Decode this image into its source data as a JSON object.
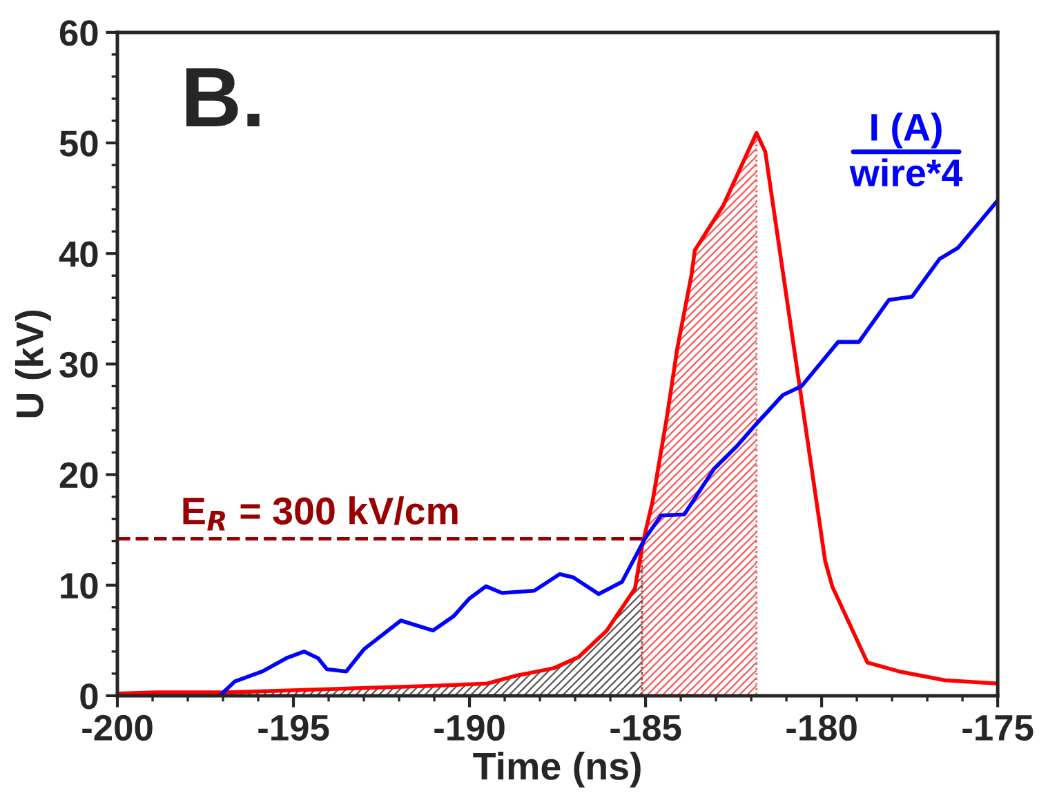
{
  "chart_data": {
    "type": "line",
    "xlabel": "Time (ns)",
    "ylabel": "U (kV)",
    "xlim": [
      -200,
      -175
    ],
    "xticks": [
      -200,
      -195,
      -190,
      -185,
      -180,
      -175
    ],
    "ylim": [
      0,
      60
    ],
    "yticks": [
      0,
      10,
      20,
      30,
      40,
      50,
      60
    ],
    "grid": false,
    "legend": false,
    "line_style": "solid",
    "marker": "none",
    "annotations": [
      "B.",
      "E$_{R}$ = 300 kV/cm"
    ],
    "series": [
      {
        "type": "area",
        "color": "#555555",
        "x": [
          -200,
          -198.9,
          -196.9,
          -195,
          -191,
          -189.5,
          -188.7,
          -187.6,
          -186.9,
          -186.1,
          -185.3,
          -185.1
        ],
        "values": [
          0.2,
          0.3,
          0.3,
          0.5,
          0.9,
          1.1,
          1.8,
          2.5,
          3.5,
          5.9,
          9.7,
          13.5
        ]
      },
      {
        "type": "area",
        "color": "#ff5555",
        "x": [
          -185.1,
          -184.8,
          -184.4,
          -184.1,
          -183.7,
          -183.6,
          -182.8,
          -181.85
        ],
        "values": [
          13.5,
          17.6,
          25.1,
          31.4,
          38,
          40.3,
          44.3,
          50.9
        ]
      },
      {
        "color": "#ff0000",
        "x": [
          -200,
          -198.9,
          -196.9,
          -195,
          -191,
          -189.5,
          -188.7,
          -187.6,
          -186.9,
          -186.1,
          -185.3,
          -185.1,
          -184.8,
          -184.4,
          -184.1,
          -183.7,
          -183.6,
          -182.8,
          -181.85,
          -181.6,
          -179.9,
          -179.7,
          -178.7,
          -177.8,
          -176.5,
          -175
        ],
        "values": [
          0.2,
          0.3,
          0.3,
          0.5,
          0.9,
          1.1,
          1.8,
          2.5,
          3.5,
          5.9,
          9.7,
          13.5,
          17.6,
          25.1,
          31.4,
          38,
          40.3,
          44.3,
          50.9,
          49.2,
          12.2,
          9.9,
          3.0,
          2.2,
          1.4,
          1.1
        ]
      },
      {
        "name": "I (A)\nwire*4",
        "color": "#0000ff",
        "x": [
          -197.06,
          -196.66,
          -195.88,
          -195.2,
          -194.7,
          -194.3,
          -194.05,
          -193.5,
          -193.0,
          -191.95,
          -191.04,
          -190.45,
          -190.0,
          -189.53,
          -189.08,
          -188.16,
          -187.44,
          -187.05,
          -186.33,
          -185.67,
          -185.02,
          -184.56,
          -183.9,
          -183.06,
          -182.4,
          -181.88,
          -181.1,
          -180.57,
          -179.53,
          -178.94,
          -178.09,
          -177.43,
          -176.65,
          -176.13,
          -175.0
        ],
        "values": [
          0.1,
          1.3,
          2.2,
          3.4,
          4.0,
          3.4,
          2.4,
          2.2,
          4.2,
          6.8,
          5.9,
          7.2,
          8.8,
          9.9,
          9.3,
          9.5,
          11.0,
          10.7,
          9.2,
          10.3,
          14.2,
          16.3,
          16.4,
          20.5,
          22.6,
          24.5,
          27.2,
          28.0,
          32.0,
          32.0,
          35.8,
          36.1,
          39.5,
          40.5,
          44.8
        ]
      }
    ],
    "ref_lines": [
      {
        "axis": "y",
        "value": 14.2,
        "color": "#990000",
        "line_style": "dashed"
      }
    ]
  }
}
